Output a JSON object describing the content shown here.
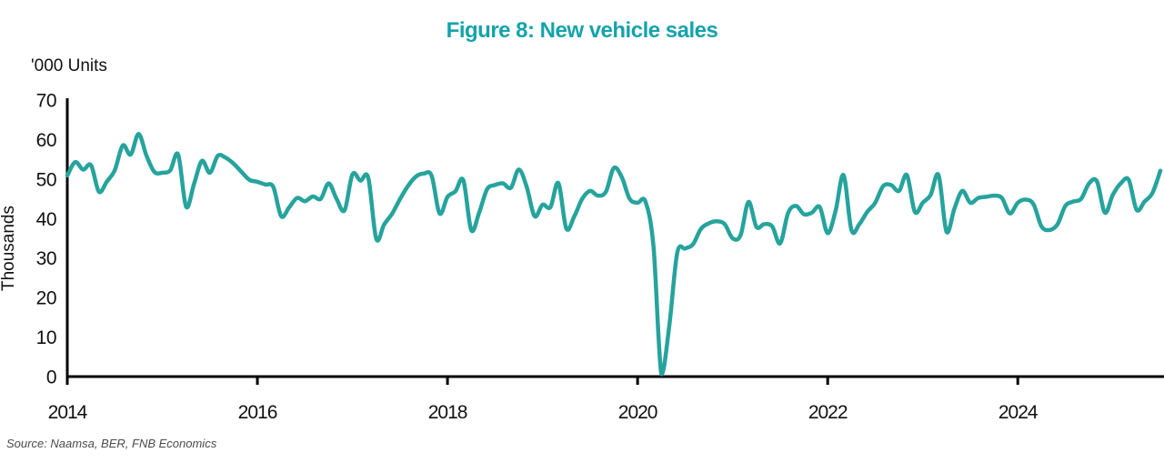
{
  "figure": {
    "title": "Figure 8: New vehicle sales",
    "source_note": "Source: Naamsa, BER, FNB Economics"
  },
  "colors": {
    "title_teal": "#14A3AB",
    "line_teal": "#26A39D",
    "axis_black": "#000000",
    "tick_text": "#111111",
    "source_gray": "#4a4a4a"
  },
  "chart_data": {
    "type": "line",
    "title": "Figure 8: New vehicle sales",
    "unit_label": "'000 Units",
    "ylabel": "Thousands",
    "xlabel": "",
    "ylim": [
      0,
      70
    ],
    "y_ticks": [
      0,
      10,
      20,
      30,
      40,
      50,
      60,
      70
    ],
    "x_tick_labels": [
      "2014",
      "2016",
      "2018",
      "2020",
      "2022",
      "2024"
    ],
    "x_start_year": 2014,
    "x_start_month": 1,
    "x_end_year": 2025,
    "x_end_month": 7,
    "frequency": "monthly",
    "grid": false,
    "legend": "none",
    "series": [
      {
        "name": "New vehicle sales ('000 units)",
        "values": [
          50.9,
          54.3,
          52.4,
          53.5,
          46.8,
          49.4,
          52.3,
          58.5,
          56.2,
          61.4,
          55.9,
          51.8,
          51.6,
          52.2,
          56.2,
          43.0,
          48.8,
          54.6,
          51.6,
          55.9,
          55.4,
          53.9,
          51.8,
          49.8,
          49.3,
          48.6,
          48.0,
          40.6,
          42.8,
          45.2,
          44.4,
          45.6,
          45.0,
          48.9,
          45.0,
          42.1,
          51.2,
          49.6,
          50.3,
          34.9,
          38.5,
          41.2,
          44.9,
          48.2,
          50.6,
          51.4,
          50.8,
          41.3,
          45.5,
          46.9,
          49.7,
          37.1,
          41.5,
          47.4,
          48.5,
          48.9,
          47.8,
          52.4,
          48.0,
          40.6,
          43.5,
          42.9,
          49.0,
          37.5,
          40.5,
          45.0,
          47.0,
          45.8,
          46.8,
          52.8,
          50.5,
          45.0,
          44.0,
          44.3,
          33.0,
          0.6,
          12.9,
          31.3,
          32.4,
          33.5,
          37.4,
          38.8,
          39.3,
          38.6,
          35.0,
          35.8,
          44.2,
          37.9,
          38.6,
          38.0,
          33.7,
          41.4,
          43.2,
          41.1,
          41.5,
          42.9,
          36.3,
          42.0,
          51.0,
          37.1,
          38.6,
          41.7,
          44.0,
          48.2,
          48.5,
          47.0,
          51.0,
          41.7,
          44.0,
          46.0,
          51.0,
          36.7,
          42.5,
          47.0,
          44.0,
          45.2,
          45.5,
          45.8,
          45.2,
          41.3,
          44.0,
          44.8,
          43.6,
          38.0,
          37.1,
          38.5,
          43.2,
          44.3,
          45.0,
          48.9,
          49.4,
          41.5,
          46.0,
          48.9,
          49.8,
          42.2,
          44.3,
          46.5,
          52.1
        ]
      }
    ]
  }
}
